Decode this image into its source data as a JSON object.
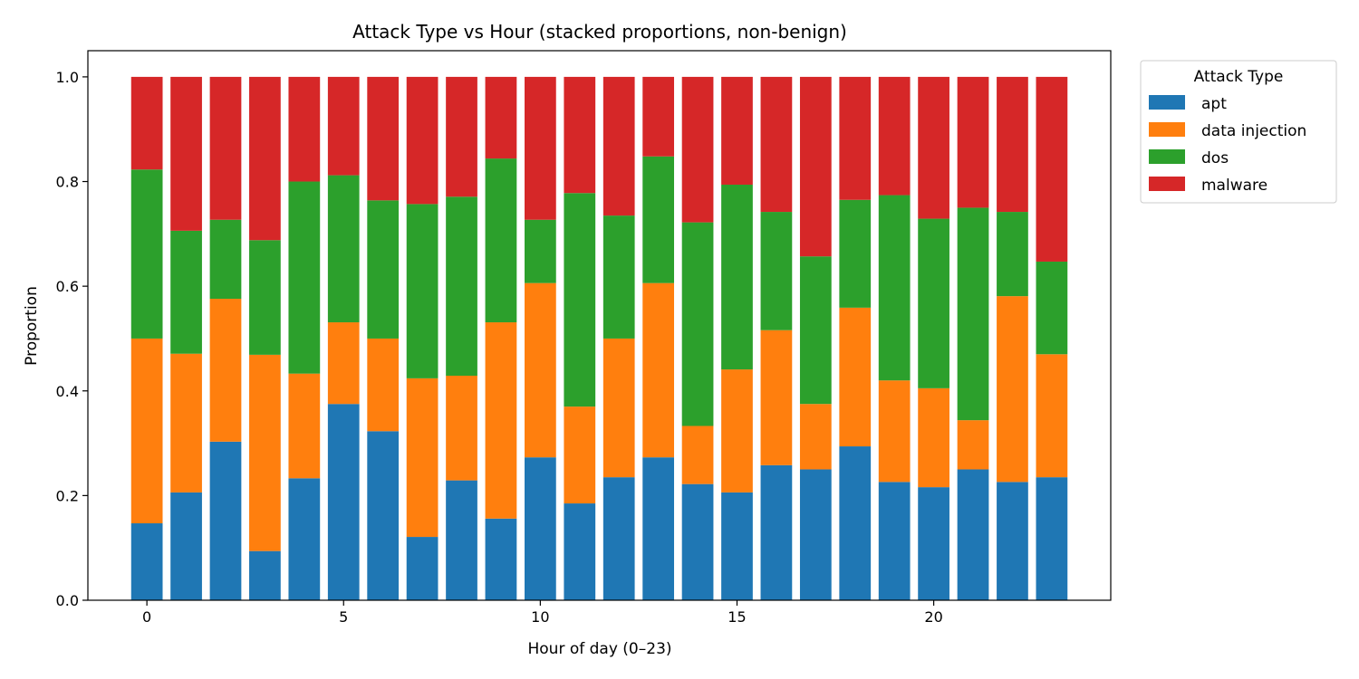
{
  "chart_data": {
    "type": "bar",
    "stacked": true,
    "title": "Attack Type vs Hour (stacked proportions, non-benign)",
    "xlabel": "Hour of day (0–23)",
    "ylabel": "Proportion",
    "x": [
      0,
      1,
      2,
      3,
      4,
      5,
      6,
      7,
      8,
      9,
      10,
      11,
      12,
      13,
      14,
      15,
      16,
      17,
      18,
      19,
      20,
      21,
      22,
      23
    ],
    "xticks": [
      0,
      5,
      10,
      15,
      20
    ],
    "xtick_labels": [
      "0",
      "5",
      "10",
      "15",
      "20"
    ],
    "xlim": [
      -1.5,
      24.5
    ],
    "ylim": [
      0,
      1.05
    ],
    "yticks": [
      0.0,
      0.2,
      0.4,
      0.6,
      0.8,
      1.0
    ],
    "ytick_labels": [
      "0.0",
      "0.2",
      "0.4",
      "0.6",
      "0.8",
      "1.0"
    ],
    "legend_title": "Attack Type",
    "legend_position": "outside-top-right",
    "series": [
      {
        "name": "apt",
        "color": "#1f77b4",
        "values": [
          0.147,
          0.206,
          0.303,
          0.094,
          0.233,
          0.375,
          0.323,
          0.121,
          0.229,
          0.156,
          0.273,
          0.185,
          0.235,
          0.273,
          0.222,
          0.206,
          0.258,
          0.25,
          0.294,
          0.226,
          0.216,
          0.25,
          0.226,
          0.235
        ]
      },
      {
        "name": "data injection",
        "color": "#ff7f0e",
        "values": [
          0.353,
          0.265,
          0.273,
          0.375,
          0.2,
          0.156,
          0.177,
          0.303,
          0.2,
          0.375,
          0.333,
          0.185,
          0.265,
          0.333,
          0.111,
          0.235,
          0.258,
          0.125,
          0.265,
          0.194,
          0.189,
          0.094,
          0.355,
          0.235
        ]
      },
      {
        "name": "dos",
        "color": "#2ca02c",
        "values": [
          0.323,
          0.235,
          0.151,
          0.219,
          0.367,
          0.281,
          0.264,
          0.333,
          0.342,
          0.313,
          0.121,
          0.408,
          0.235,
          0.242,
          0.389,
          0.353,
          0.226,
          0.282,
          0.206,
          0.354,
          0.324,
          0.406,
          0.161,
          0.177
        ]
      },
      {
        "name": "malware",
        "color": "#d62728",
        "values": [
          0.177,
          0.294,
          0.273,
          0.312,
          0.2,
          0.188,
          0.236,
          0.243,
          0.229,
          0.156,
          0.273,
          0.222,
          0.265,
          0.152,
          0.278,
          0.206,
          0.258,
          0.343,
          0.235,
          0.226,
          0.271,
          0.25,
          0.258,
          0.353
        ]
      }
    ]
  }
}
